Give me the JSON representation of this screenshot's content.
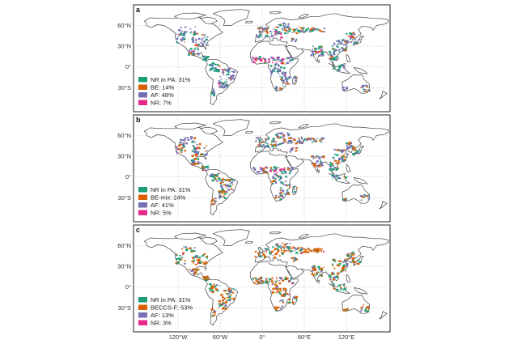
{
  "colors": {
    "nr_in_pa": "#1b9e77",
    "bioenergy": "#d95f02",
    "ar": "#7570b3",
    "nr": "#e7298a"
  },
  "axes": {
    "lat_ticks": [
      "60°N",
      "30°N",
      "0°",
      "30°S"
    ],
    "lon_ticks": [
      "120°W",
      "60°W",
      "0°",
      "60°E",
      "120°E"
    ]
  },
  "panels": [
    {
      "id": "a",
      "letter": "a",
      "legend": [
        {
          "label": "NR in PA: 31%",
          "color_key": "nr_in_pa"
        },
        {
          "label": "BE: 14%",
          "color_key": "bioenergy"
        },
        {
          "label": "AF: 48%",
          "color_key": "ar"
        },
        {
          "label": "NR: 7%",
          "color_key": "nr"
        }
      ],
      "mix": {
        "nr_in_pa": 0.31,
        "bioenergy": 0.14,
        "ar": 0.48,
        "nr": 0.07
      }
    },
    {
      "id": "b",
      "letter": "b",
      "legend": [
        {
          "label": "NR in PA: 31%",
          "color_key": "nr_in_pa"
        },
        {
          "label": "BE-mix: 24%",
          "color_key": "bioenergy"
        },
        {
          "label": "AF: 41%",
          "color_key": "ar"
        },
        {
          "label": "NR: 5%",
          "color_key": "nr"
        }
      ],
      "mix": {
        "nr_in_pa": 0.31,
        "bioenergy": 0.24,
        "ar": 0.41,
        "nr": 0.05
      }
    },
    {
      "id": "c",
      "letter": "c",
      "legend": [
        {
          "label": "NR in PA: 31%",
          "color_key": "nr_in_pa"
        },
        {
          "label": "BECCS-F: 53%",
          "color_key": "bioenergy"
        },
        {
          "label": "AF: 13%",
          "color_key": "ar"
        },
        {
          "label": "NR: 3%",
          "color_key": "nr"
        }
      ],
      "mix": {
        "nr_in_pa": 0.31,
        "bioenergy": 0.53,
        "ar": 0.13,
        "nr": 0.03
      }
    }
  ]
}
